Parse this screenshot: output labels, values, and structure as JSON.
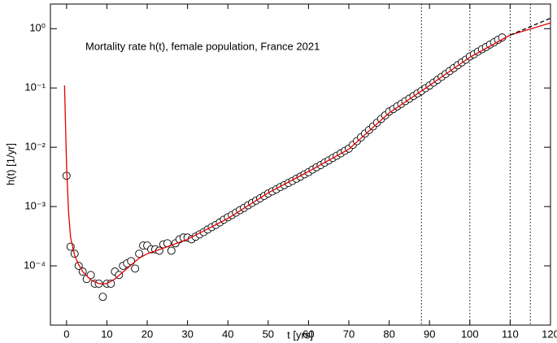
{
  "chart_data": {
    "type": "scatter",
    "annotation": "Mortality rate h(t), female population, France 2021",
    "x_label": "t [yrs]",
    "y_label": "h(t) [1/yr]",
    "xlim": [
      -4,
      120
    ],
    "xticks": [
      0,
      10,
      20,
      30,
      40,
      50,
      60,
      70,
      80,
      90,
      100,
      110,
      120
    ],
    "ylim": [
      1e-05,
      2.6
    ],
    "yscale": "log",
    "yticks": [
      {
        "value": 0.0001,
        "label": "10⁻⁴"
      },
      {
        "value": 0.001,
        "label": "10⁻³"
      },
      {
        "value": 0.01,
        "label": "10⁻²"
      },
      {
        "value": 0.1,
        "label": "10⁻¹"
      },
      {
        "value": 1,
        "label": "10⁰"
      }
    ],
    "vlines": [
      88,
      100,
      110,
      115
    ],
    "series": [
      {
        "style": "marker",
        "color": "#000000",
        "x": [
          0,
          1,
          2,
          3,
          4,
          5,
          6,
          7,
          8,
          9,
          10,
          11,
          12,
          13,
          14,
          15,
          16,
          17,
          18,
          19,
          20,
          21,
          22,
          23,
          24,
          25,
          26,
          27,
          28,
          29,
          30,
          31,
          32,
          33,
          34,
          35,
          36,
          37,
          38,
          39,
          40,
          41,
          42,
          43,
          44,
          45,
          46,
          47,
          48,
          49,
          50,
          51,
          52,
          53,
          54,
          55,
          56,
          57,
          58,
          59,
          60,
          61,
          62,
          63,
          64,
          65,
          66,
          67,
          68,
          69,
          70,
          71,
          72,
          73,
          74,
          75,
          76,
          77,
          78,
          79,
          80,
          81,
          82,
          83,
          84,
          85,
          86,
          87,
          88,
          89,
          90,
          91,
          92,
          93,
          94,
          95,
          96,
          97,
          98,
          99,
          100,
          101,
          102,
          103,
          104,
          105,
          106,
          107,
          108
        ],
        "values": [
          0.0033,
          0.00021,
          0.00016,
          0.0001,
          8e-05,
          6e-05,
          7e-05,
          5e-05,
          5e-05,
          3e-05,
          5e-05,
          5e-05,
          8e-05,
          7e-05,
          0.0001,
          0.00011,
          0.00012,
          9e-05,
          0.00016,
          0.00022,
          0.00022,
          0.00019,
          0.00019,
          0.00018,
          0.00023,
          0.00024,
          0.00018,
          0.00024,
          0.00028,
          0.0003,
          0.0003,
          0.00028,
          0.00031,
          0.00034,
          0.00037,
          0.00041,
          0.00045,
          0.00049,
          0.00054,
          0.0006,
          0.00066,
          0.00072,
          0.00079,
          0.00087,
          0.00095,
          0.00105,
          0.00115,
          0.00126,
          0.00138,
          0.00151,
          0.00166,
          0.0018,
          0.00195,
          0.00213,
          0.0023,
          0.0025,
          0.0027,
          0.00295,
          0.0032,
          0.0035,
          0.0038,
          0.0042,
          0.0046,
          0.005,
          0.0055,
          0.006,
          0.0066,
          0.0072,
          0.0079,
          0.0087,
          0.0095,
          0.011,
          0.0127,
          0.0147,
          0.017,
          0.0195,
          0.0225,
          0.026,
          0.03,
          0.0345,
          0.04,
          0.044,
          0.049,
          0.054,
          0.06,
          0.066,
          0.073,
          0.081,
          0.089,
          0.099,
          0.11,
          0.123,
          0.137,
          0.154,
          0.172,
          0.193,
          0.216,
          0.242,
          0.27,
          0.3,
          0.34,
          0.37,
          0.41,
          0.45,
          0.49,
          0.54,
          0.59,
          0.65,
          0.71
        ]
      },
      {
        "style": "line",
        "color": "#e00000",
        "x": [
          -0.5,
          0,
          0.5,
          1,
          2,
          3,
          4,
          6,
          8,
          10,
          12,
          15,
          18,
          20,
          25,
          30,
          40,
          50,
          60,
          70,
          80,
          90,
          100,
          110,
          120
        ],
        "values": [
          0.11,
          0.005,
          0.0008,
          0.0003,
          0.00015,
          0.000105,
          8e-05,
          5.8e-05,
          5e-05,
          5e-05,
          6e-05,
          9e-05,
          0.000135,
          0.00016,
          0.00021,
          0.00028,
          0.00063,
          0.0017,
          0.0039,
          0.0093,
          0.038,
          0.11,
          0.33,
          0.78,
          1.25
        ]
      },
      {
        "style": "dashed",
        "color": "#000000",
        "x": [
          110,
          120
        ],
        "values": [
          0.78,
          1.5
        ]
      }
    ]
  }
}
